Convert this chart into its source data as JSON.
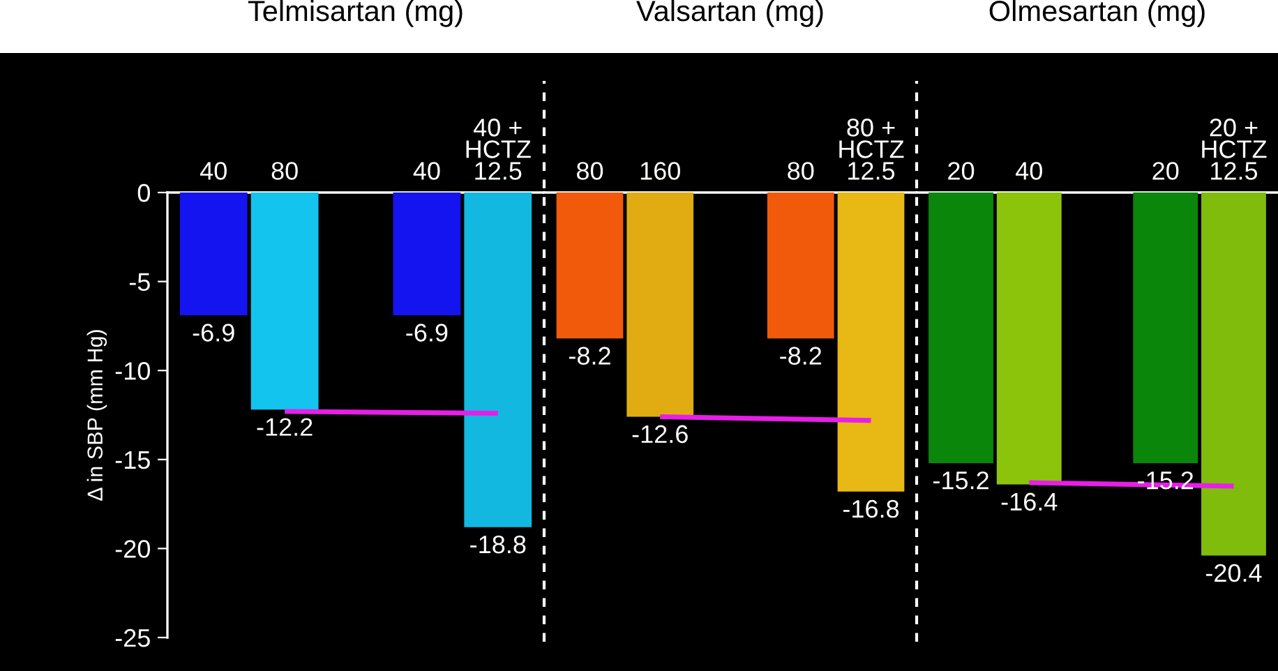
{
  "chart_data": [
    {
      "type": "bar",
      "title": "Telmisartan (mg)",
      "ylabel": "Δ in SBP (mm Hg)",
      "categories": [
        "40",
        "80",
        null,
        "40",
        "40 +\nHCTZ\n12.5"
      ],
      "ylim": [
        -25,
        0
      ],
      "yticks": [
        0,
        -5,
        -10,
        -15,
        -20,
        -25
      ],
      "series": [
        {
          "colors": [
            "#1414f0",
            "#12c4ee",
            "#000000",
            "#1414f0",
            "#12b8e0"
          ],
          "values": [
            -6.9,
            -12.2,
            null,
            -6.9,
            -18.8
          ],
          "value_labels": [
            "-6.9",
            "-12.2",
            null,
            "-6.9",
            "-18.8"
          ]
        },
        {
          "type": "line",
          "color": "#e81ee8",
          "values": [
            null,
            -12.3,
            null,
            null,
            -12.4
          ]
        }
      ]
    },
    {
      "type": "bar",
      "title": "Valsartan (mg)",
      "categories": [
        "80",
        "160",
        null,
        "80",
        "80 +\nHCTZ\n12.5"
      ],
      "ylim": [
        -25,
        0
      ],
      "yticks": [
        0,
        -5,
        -10,
        -15,
        -20,
        -25
      ],
      "tick_labels": "x",
      "series": [
        {
          "colors": [
            "#f05a0a",
            "#e0ac12",
            "#000000",
            "#f05a0a",
            "#e8b814"
          ],
          "values": [
            -8.2,
            -12.6,
            null,
            -8.2,
            -16.8
          ],
          "value_labels": [
            "-8.2",
            "-12.6",
            null,
            "-8.2",
            "-16.8"
          ]
        },
        {
          "type": "line",
          "color": "#e81ee8",
          "values": [
            null,
            -12.6,
            null,
            null,
            -12.8
          ]
        }
      ]
    },
    {
      "type": "bar",
      "title": "Olmesartan (mg)",
      "categories": [
        "20",
        "40",
        null,
        "20",
        "20 +\nHCTZ\n12.5"
      ],
      "ylim": [
        -25,
        0
      ],
      "yticks": [
        0,
        -5,
        -10,
        -15,
        -20,
        -25
      ],
      "tick_labels": "x",
      "series": [
        {
          "colors": [
            "#0a860a",
            "#8cc40c",
            "#000000",
            "#0a860a",
            "#80bc0c"
          ],
          "values": [
            -15.2,
            -16.4,
            null,
            -15.2,
            -20.4
          ],
          "value_labels": [
            "-15.2",
            "-16.4",
            null,
            "-15.2",
            "-20.4"
          ]
        },
        {
          "type": "line",
          "color": "#e81ee8",
          "values": [
            null,
            -16.3,
            null,
            null,
            -16.5
          ]
        }
      ]
    }
  ]
}
